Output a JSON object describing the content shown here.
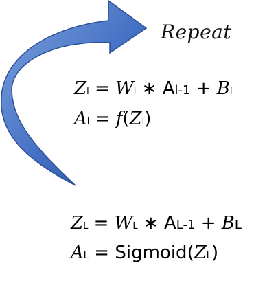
{
  "label": "Repeat",
  "equations": {
    "hidden_z": {
      "lhs_var": "Z",
      "lhs_sub": "l",
      "eq": "=",
      "w_var": "W",
      "w_sub": "l",
      "op": "∗",
      "a_var": "A",
      "a_sub": "l-1",
      "plus": "+",
      "b_var": "B",
      "b_sub": "l"
    },
    "hidden_a": {
      "lhs_var": "A",
      "lhs_sub": "l",
      "eq": "=",
      "func": "f",
      "open": "(",
      "arg_var": "Z",
      "arg_sub": "l",
      "close": ")"
    },
    "output_z": {
      "lhs_var": "Z",
      "lhs_sub": "L",
      "eq": "=",
      "w_var": "W",
      "w_sub": "L",
      "op": "∗",
      "a_var": "A",
      "a_sub": "L-1",
      "plus": "+",
      "b_var": "B",
      "b_sub": "L"
    },
    "output_a": {
      "lhs_var": "A",
      "lhs_sub": "L",
      "eq": "=",
      "func": "Sigmoid",
      "open": "(",
      "arg_var": "Z",
      "arg_sub": "L",
      "close": ")"
    }
  },
  "colors": {
    "arrow_light": "#6f95d6",
    "arrow_dark": "#1f4a9a"
  }
}
